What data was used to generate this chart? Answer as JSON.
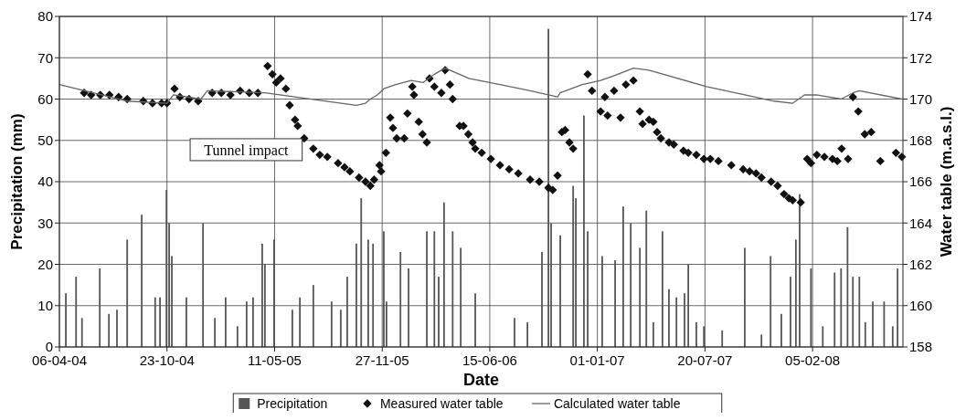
{
  "chart_data": {
    "type": "bar",
    "xlabel": "Date",
    "ylabel": "Precipitation (mm)",
    "y2label": "Water table (m.a.s.l.)",
    "xlim": [
      "2004-04-06",
      "2008-07-22"
    ],
    "xticks": [
      {
        "value": "2004-04-06",
        "label": "06-04-04"
      },
      {
        "value": "2004-10-23",
        "label": "23-10-04"
      },
      {
        "value": "2005-05-11",
        "label": "11-05-05"
      },
      {
        "value": "2005-11-27",
        "label": "27-11-05"
      },
      {
        "value": "2006-06-15",
        "label": "15-06-06"
      },
      {
        "value": "2007-01-01",
        "label": "01-01-07"
      },
      {
        "value": "2007-07-20",
        "label": "20-07-07"
      },
      {
        "value": "2008-02-05",
        "label": "05-02-08"
      }
    ],
    "ylim": [
      0,
      80
    ],
    "yticks": [
      0,
      10,
      20,
      30,
      40,
      50,
      60,
      70,
      80
    ],
    "y2lim": [
      158,
      174
    ],
    "y2ticks": [
      158,
      160,
      162,
      164,
      166,
      168,
      170,
      172,
      174
    ],
    "grid": true,
    "legend": "bottom",
    "annotations": [
      "Tunnel impact"
    ],
    "series": [
      {
        "name": "Precipitation",
        "color": "#555555",
        "x": [
          "2004-04-18",
          "2004-05-07",
          "2004-05-18",
          "2004-06-20",
          "2004-07-07",
          "2004-07-22",
          "2004-08-10",
          "2004-09-06",
          "2004-10-01",
          "2004-10-10",
          "2004-10-22",
          "2004-10-27",
          "2004-11-01",
          "2004-11-28",
          "2004-12-29",
          "2005-01-20",
          "2005-02-09",
          "2005-03-03",
          "2005-03-20",
          "2005-04-01",
          "2005-04-18",
          "2005-04-23",
          "2005-05-10",
          "2005-06-13",
          "2005-06-27",
          "2005-07-22",
          "2005-08-25",
          "2005-09-11",
          "2005-09-23",
          "2005-10-10",
          "2005-10-19",
          "2005-11-01",
          "2005-11-10",
          "2005-11-30",
          "2005-12-05",
          "2005-12-31",
          "2006-01-15",
          "2006-02-18",
          "2006-03-04",
          "2006-03-12",
          "2006-03-22",
          "2006-04-07",
          "2006-04-22",
          "2006-05-19",
          "2006-07-31",
          "2006-08-24",
          "2006-09-20",
          "2006-10-02",
          "2006-10-07",
          "2006-10-24",
          "2006-11-17",
          "2006-11-22",
          "2006-12-07",
          "2006-12-14",
          "2007-01-10",
          "2007-02-03",
          "2007-02-18",
          "2007-03-04",
          "2007-03-21",
          "2007-04-02",
          "2007-04-15",
          "2007-05-02",
          "2007-05-14",
          "2007-05-28",
          "2007-06-12",
          "2007-06-19",
          "2007-07-04",
          "2007-07-18",
          "2007-08-21",
          "2007-10-02",
          "2007-11-02",
          "2007-11-19",
          "2007-12-09",
          "2007-12-26",
          "2008-01-05",
          "2008-01-12",
          "2008-02-02",
          "2008-02-24",
          "2008-03-17",
          "2008-03-29",
          "2008-04-10",
          "2008-04-20",
          "2008-05-02",
          "2008-05-13",
          "2008-05-27",
          "2008-06-17",
          "2008-07-03",
          "2008-07-12"
        ],
        "values": [
          13,
          17,
          7,
          19,
          8,
          9,
          26,
          32,
          12,
          12,
          38,
          30,
          22,
          12,
          30,
          7,
          12,
          5,
          11,
          12,
          25,
          20,
          26,
          9,
          12,
          15,
          11,
          9,
          17,
          25,
          36,
          26,
          25,
          28,
          11,
          23,
          19,
          28,
          28,
          17,
          35,
          28,
          24,
          13,
          7,
          6,
          23,
          77,
          30,
          27,
          39,
          36,
          56,
          28,
          22,
          21,
          34,
          30,
          24,
          33,
          6,
          28,
          14,
          12,
          13,
          20,
          6,
          5,
          4,
          24,
          3,
          22,
          8,
          17,
          26,
          37,
          19,
          5,
          18,
          19,
          29,
          17,
          17,
          6,
          11,
          11,
          5,
          19
        ]
      },
      {
        "name": "Measured water table",
        "type": "scatter",
        "axis": "y2",
        "marker": "diamond",
        "color": "#111111",
        "x": [
          "2004-05-22",
          "2004-06-04",
          "2004-06-21",
          "2004-07-08",
          "2004-07-25",
          "2004-08-10",
          "2004-09-09",
          "2004-09-26",
          "2004-10-13",
          "2004-10-23",
          "2004-11-06",
          "2004-11-16",
          "2004-12-03",
          "2004-12-20",
          "2005-01-15",
          "2005-02-01",
          "2005-02-18",
          "2005-03-08",
          "2005-03-25",
          "2005-04-10",
          "2005-04-28",
          "2005-05-07",
          "2005-05-14",
          "2005-05-22",
          "2005-06-01",
          "2005-06-08",
          "2005-06-18",
          "2005-06-23",
          "2005-07-05",
          "2005-07-22",
          "2005-08-03",
          "2005-08-17",
          "2005-09-06",
          "2005-09-18",
          "2005-09-28",
          "2005-10-15",
          "2005-10-27",
          "2005-11-05",
          "2005-11-12",
          "2005-11-22",
          "2005-11-25",
          "2005-12-04",
          "2005-12-12",
          "2005-12-17",
          "2005-12-24",
          "2006-01-07",
          "2006-01-13",
          "2006-01-22",
          "2006-01-25",
          "2006-02-03",
          "2006-02-10",
          "2006-02-18",
          "2006-02-23",
          "2006-03-04",
          "2006-03-17",
          "2006-03-24",
          "2006-04-02",
          "2006-04-07",
          "2006-04-20",
          "2006-04-27",
          "2006-05-06",
          "2006-05-14",
          "2006-05-19",
          "2006-05-31",
          "2006-06-17",
          "2006-07-04",
          "2006-07-21",
          "2006-08-07",
          "2006-08-29",
          "2006-09-15",
          "2006-10-02",
          "2006-10-10",
          "2006-10-19",
          "2006-10-27",
          "2006-11-02",
          "2006-11-10",
          "2006-11-17",
          "2006-12-14",
          "2006-12-22",
          "2007-01-07",
          "2007-01-15",
          "2007-01-20",
          "2007-02-01",
          "2007-02-13",
          "2007-02-23",
          "2007-03-09",
          "2007-03-21",
          "2007-03-26",
          "2007-04-07",
          "2007-04-15",
          "2007-04-22",
          "2007-04-29",
          "2007-05-14",
          "2007-05-23",
          "2007-06-10",
          "2007-06-19",
          "2007-07-04",
          "2007-07-18",
          "2007-07-30",
          "2007-08-14",
          "2007-09-07",
          "2007-09-29",
          "2007-10-11",
          "2007-10-23",
          "2007-11-02",
          "2007-11-20",
          "2007-12-02",
          "2007-12-14",
          "2007-12-23",
          "2007-12-30",
          "2008-01-14",
          "2008-01-26",
          "2008-02-02",
          "2008-02-13",
          "2008-02-27",
          "2008-03-13",
          "2008-03-22",
          "2008-03-30",
          "2008-04-11",
          "2008-04-20",
          "2008-04-30",
          "2008-05-12",
          "2008-05-24",
          "2008-06-10",
          "2008-07-09",
          "2008-07-20"
        ],
        "values": [
          170.3,
          170.2,
          170.2,
          170.2,
          170.1,
          170.0,
          169.9,
          169.8,
          169.8,
          169.8,
          170.5,
          170.1,
          170.0,
          169.9,
          170.3,
          170.3,
          170.2,
          170.4,
          170.3,
          170.3,
          171.6,
          171.2,
          170.8,
          171.0,
          170.5,
          169.7,
          169.0,
          168.7,
          168.1,
          167.6,
          167.3,
          167.2,
          166.9,
          166.7,
          166.5,
          166.2,
          166.0,
          165.8,
          166.1,
          166.8,
          166.5,
          167.4,
          169.1,
          168.6,
          168.1,
          168.1,
          169.3,
          170.6,
          170.2,
          168.9,
          168.3,
          167.9,
          171.0,
          170.6,
          170.3,
          171.4,
          170.7,
          170.0,
          168.7,
          168.7,
          168.3,
          167.9,
          167.6,
          167.4,
          167.1,
          166.8,
          166.6,
          166.4,
          166.1,
          166.0,
          165.7,
          165.6,
          166.3,
          168.4,
          168.5,
          167.9,
          167.6,
          171.2,
          170.4,
          169.4,
          170.1,
          169.2,
          170.4,
          169.1,
          170.7,
          170.9,
          169.4,
          168.8,
          169.0,
          168.9,
          168.4,
          168.1,
          167.9,
          167.8,
          167.5,
          167.4,
          167.3,
          167.1,
          167.1,
          167.0,
          166.8,
          166.6,
          166.5,
          166.4,
          166.2,
          166.0,
          165.8,
          165.4,
          165.2,
          165.1,
          165.0,
          167.1,
          166.9,
          167.3,
          167.2,
          167.1,
          167.0,
          167.6,
          167.1,
          170.1,
          169.4,
          168.3,
          168.4,
          167.0,
          167.4,
          167.2
        ]
      },
      {
        "name": "Calculated water table",
        "type": "line",
        "axis": "y2",
        "color": "#666666",
        "x": [
          "2004-04-06",
          "2004-08-11",
          "2004-10-23",
          "2004-11-04",
          "2004-12-25",
          "2005-01-06",
          "2005-04-23",
          "2005-10-10",
          "2005-10-27",
          "2005-11-05",
          "2005-11-18",
          "2005-11-30",
          "2005-12-22",
          "2006-01-20",
          "2006-02-11",
          "2006-03-04",
          "2006-03-24",
          "2006-05-07",
          "2006-07-04",
          "2006-08-29",
          "2006-10-19",
          "2006-10-24",
          "2006-12-04",
          "2007-01-07",
          "2007-01-29",
          "2007-03-09",
          "2007-04-07",
          "2007-07-23",
          "2007-11-26",
          "2007-12-30",
          "2008-01-21",
          "2008-02-12",
          "2008-03-29",
          "2008-04-20",
          "2008-05-02",
          "2008-07-20"
        ],
        "values": [
          170.7,
          169.9,
          169.8,
          170.2,
          170.0,
          170.4,
          170.3,
          169.7,
          169.8,
          170.0,
          170.2,
          170.5,
          170.7,
          170.9,
          170.8,
          171.2,
          171.5,
          171.0,
          170.7,
          170.4,
          170.1,
          170.3,
          170.7,
          170.9,
          171.1,
          171.5,
          171.4,
          170.6,
          169.9,
          169.8,
          170.2,
          170.2,
          170.0,
          170.3,
          170.4,
          170.0
        ]
      }
    ]
  }
}
